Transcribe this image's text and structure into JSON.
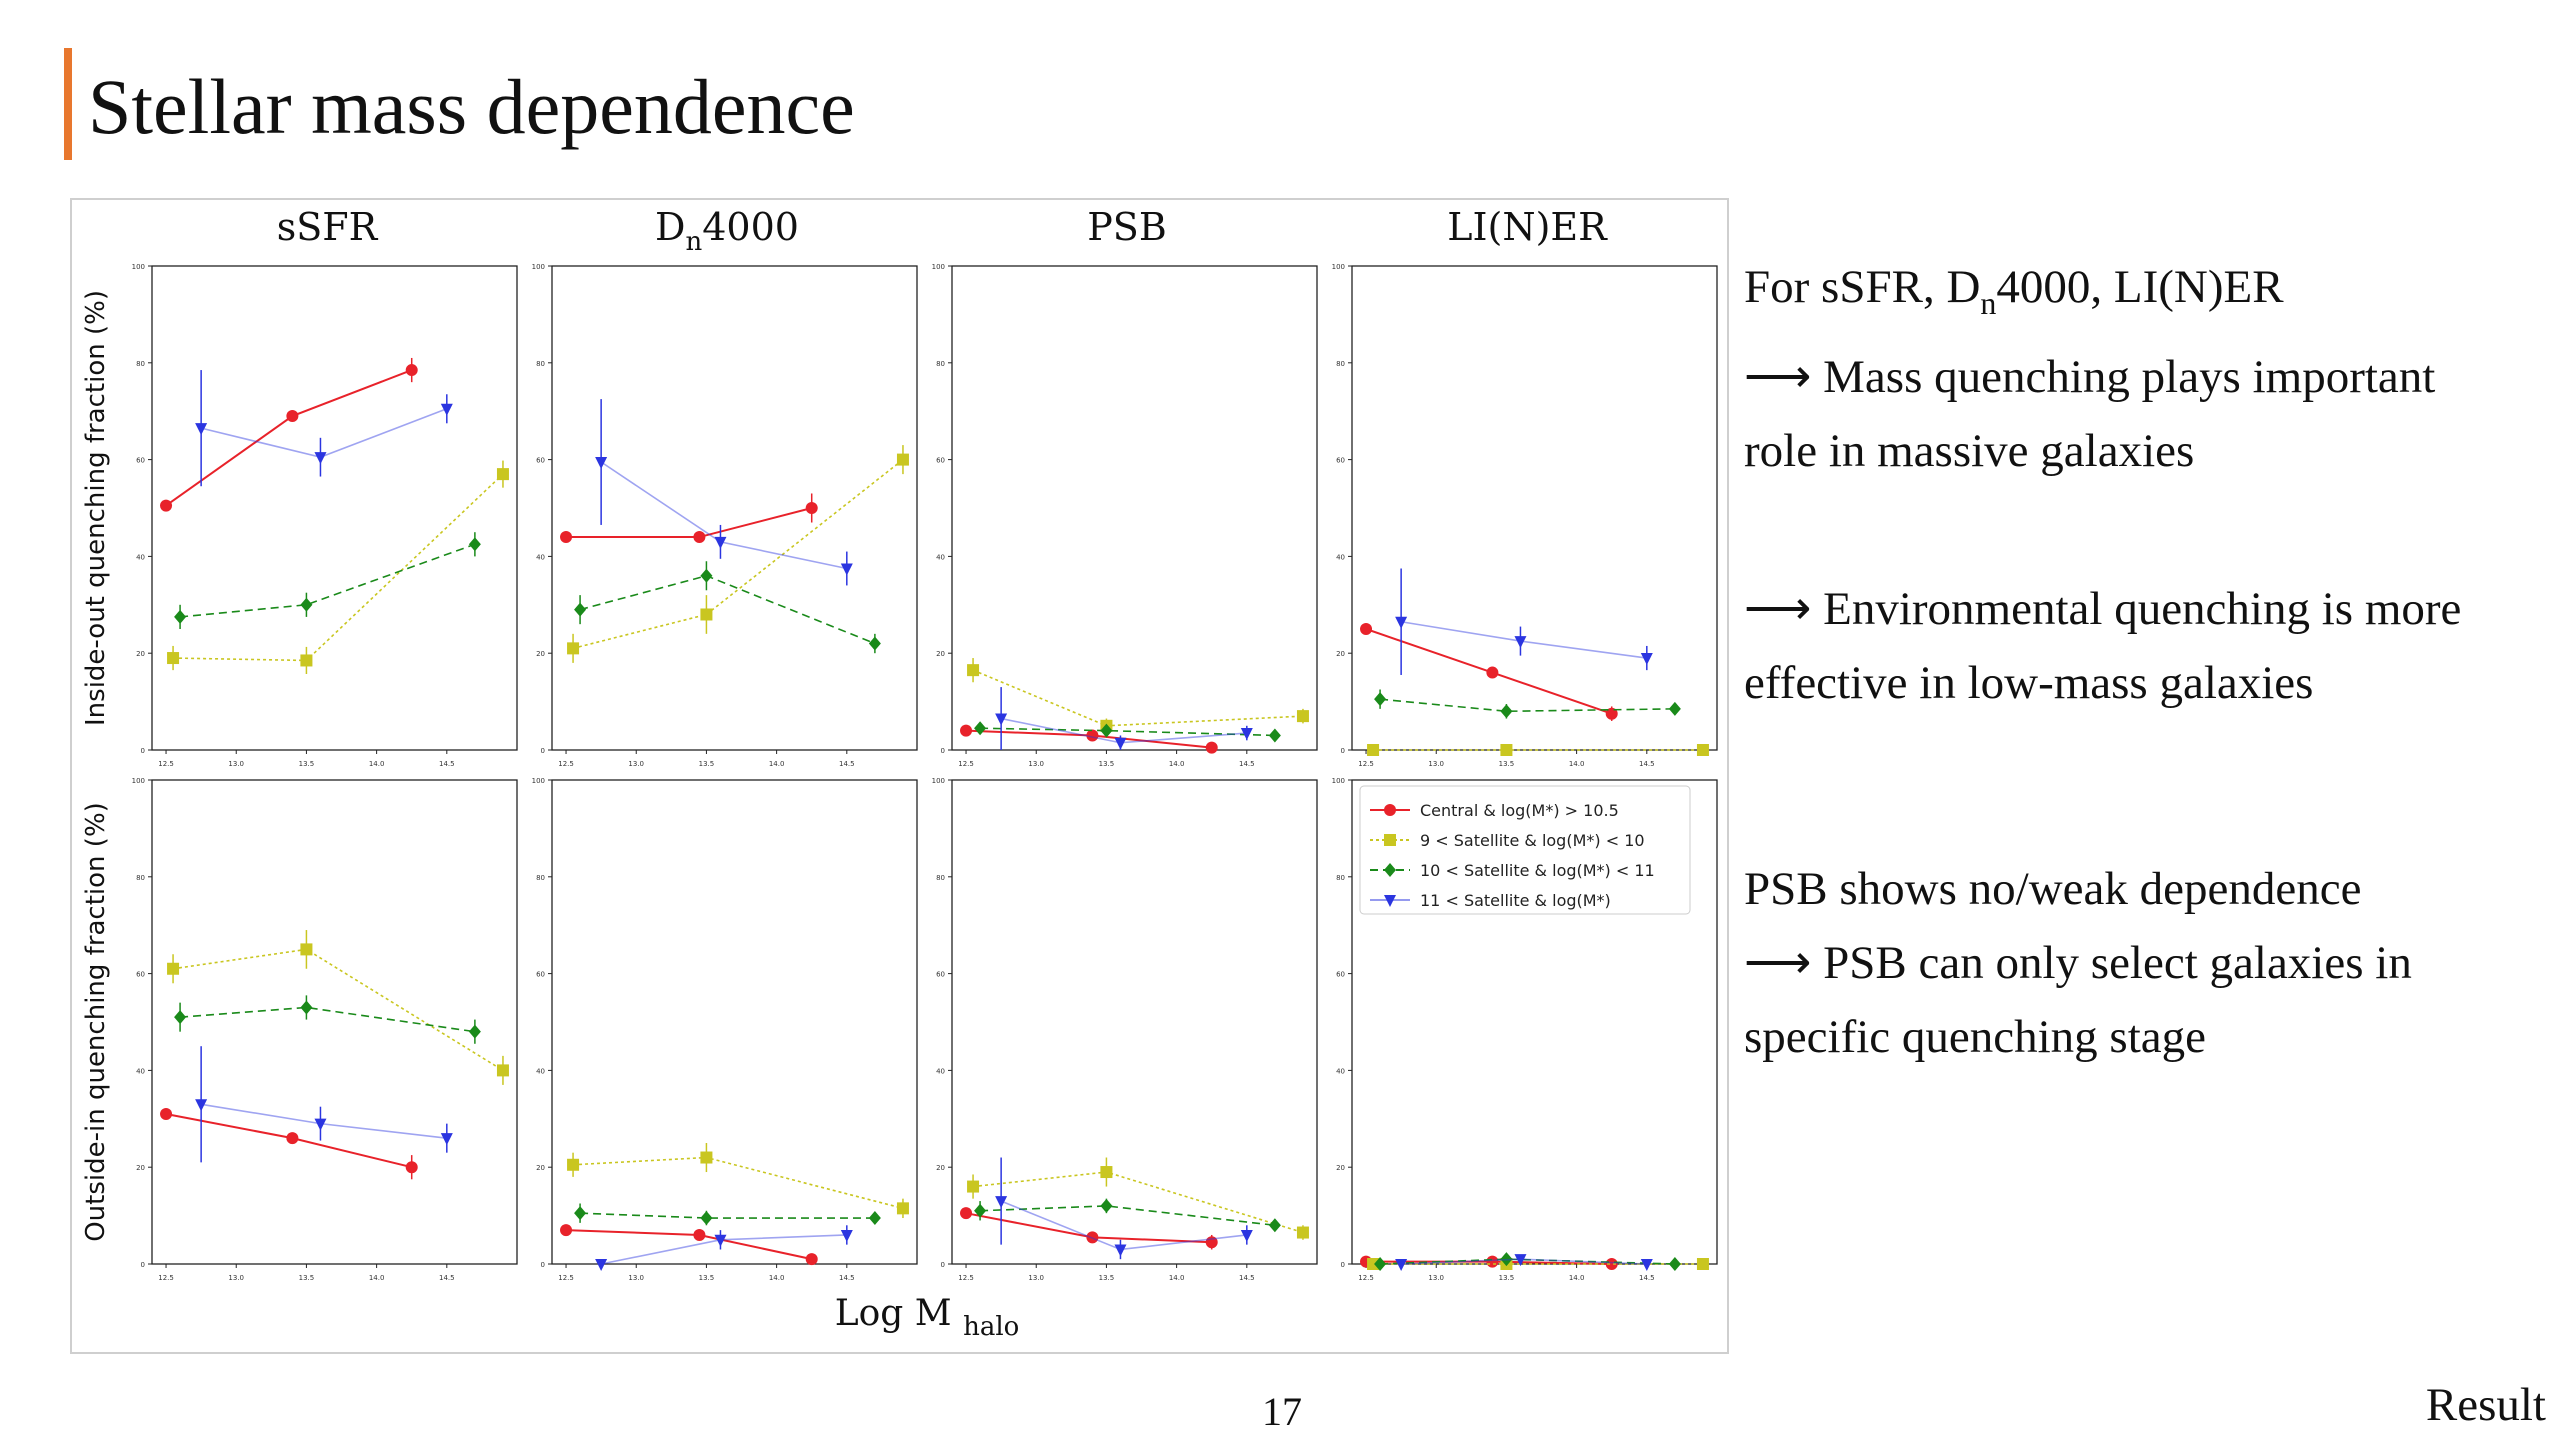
{
  "slide": {
    "title": "Stellar mass dependence",
    "page_number": "17",
    "section_label": "Result",
    "accent_color": "#e8772e"
  },
  "bullets": {
    "b1_prefix": "For sSFR, D",
    "b1_sub": "n",
    "b1_suffix": "4000, LI(N)ER",
    "b2": "⟶ Mass quenching plays important",
    "b3": "role in massive galaxies",
    "b4": "⟶ Environmental quenching is more",
    "b5": "effective in low-mass galaxies",
    "b6": "PSB shows no/weak dependence",
    "b7": "⟶ PSB can only select galaxies in",
    "b8": "specific quenching stage"
  },
  "chart_data": {
    "type": "line",
    "xlabel_main": "Log M",
    "xlabel_sub": "halo",
    "column_titles": [
      {
        "main": "sSFR",
        "sub": ""
      },
      {
        "main": "D",
        "sub": "n",
        "tail": "4000"
      },
      {
        "main": "PSB",
        "sub": ""
      },
      {
        "main": "LI(N)ER",
        "sub": ""
      }
    ],
    "row_ylabels": [
      "Inside-out quenching fraction (%)",
      "Outside-in quenching fraction (%)"
    ],
    "xlim": [
      12.4,
      15.0
    ],
    "ylim": [
      0,
      100
    ],
    "xticks": [
      12.5,
      13.0,
      13.5,
      14.0,
      14.5
    ],
    "xtick_labels": [
      "12.5",
      "13.0",
      "13.5",
      "14.0",
      "14.5"
    ],
    "yticks": [
      0,
      20,
      40,
      60,
      80,
      100
    ],
    "ytick_labels": [
      "0",
      "20",
      "40",
      "60",
      "80",
      "100"
    ],
    "legend": [
      {
        "label": "Central & log(M*) > 10.5",
        "color": "#e8222a",
        "style": "solid",
        "marker": "circle"
      },
      {
        "label": "9 < Satellite & log(M*) < 10",
        "color": "#c9c620",
        "style": "dotted",
        "marker": "square"
      },
      {
        "label": "10 < Satellite & log(M*) < 11",
        "color": "#1a8a1a",
        "style": "dashed",
        "marker": "diamond"
      },
      {
        "label": "11 < Satellite & log(M*)",
        "color": "#2b35e0",
        "style": "solid-light",
        "marker": "triangle"
      }
    ],
    "panels": [
      {
        "row": 0,
        "col": 0,
        "series": [
          {
            "name": "central",
            "x": [
              12.5,
              13.4,
              14.25
            ],
            "y": [
              50.5,
              69,
              78.5
            ],
            "err": [
              0.8,
              1,
              2.5
            ]
          },
          {
            "name": "sat9-10",
            "x": [
              12.55,
              13.5,
              14.9
            ],
            "y": [
              19,
              18.5,
              57
            ],
            "err": [
              2.5,
              2.8,
              2.8
            ]
          },
          {
            "name": "sat10-11",
            "x": [
              12.6,
              13.5,
              14.7
            ],
            "y": [
              27.5,
              30,
              42.5
            ],
            "err": [
              2.5,
              2.5,
              2.5
            ]
          },
          {
            "name": "sat11",
            "x": [
              12.75,
              13.6,
              14.5
            ],
            "y": [
              66.5,
              60.5,
              70.5
            ],
            "err": [
              12,
              4,
              3
            ]
          }
        ]
      },
      {
        "row": 0,
        "col": 1,
        "series": [
          {
            "name": "central",
            "x": [
              12.5,
              13.45,
              14.25
            ],
            "y": [
              44,
              44,
              50
            ],
            "err": [
              0.8,
              1,
              3
            ]
          },
          {
            "name": "sat9-10",
            "x": [
              12.55,
              13.5,
              14.9
            ],
            "y": [
              21,
              28,
              60
            ],
            "err": [
              3,
              4,
              3
            ]
          },
          {
            "name": "sat10-11",
            "x": [
              12.6,
              13.5,
              14.7
            ],
            "y": [
              29,
              36,
              22
            ],
            "err": [
              3,
              3,
              2
            ]
          },
          {
            "name": "sat11",
            "x": [
              12.75,
              13.6,
              14.5
            ],
            "y": [
              59.5,
              43,
              37.5
            ],
            "err": [
              13,
              3.5,
              3.5
            ]
          }
        ]
      },
      {
        "row": 0,
        "col": 2,
        "series": [
          {
            "name": "central",
            "x": [
              12.5,
              13.4,
              14.25
            ],
            "y": [
              4,
              3,
              0.5
            ],
            "err": [
              0.5,
              0.5,
              0.5
            ]
          },
          {
            "name": "sat9-10",
            "x": [
              12.55,
              13.5,
              14.9
            ],
            "y": [
              16.5,
              5,
              7
            ],
            "err": [
              2.5,
              1.5,
              1.5
            ]
          },
          {
            "name": "sat10-11",
            "x": [
              12.6,
              13.5,
              14.7
            ],
            "y": [
              4.5,
              4,
              3
            ],
            "err": [
              1,
              1,
              1
            ]
          },
          {
            "name": "sat11",
            "x": [
              12.75,
              13.6,
              14.5
            ],
            "y": [
              6.5,
              1.5,
              3.5
            ],
            "err": [
              6.5,
              1.5,
              1.5
            ]
          }
        ]
      },
      {
        "row": 0,
        "col": 3,
        "series": [
          {
            "name": "central",
            "x": [
              12.5,
              13.4,
              14.25
            ],
            "y": [
              25,
              16,
              7.5
            ],
            "err": [
              0.8,
              1,
              1.5
            ]
          },
          {
            "name": "sat9-10",
            "x": [
              12.55,
              13.5,
              14.9
            ],
            "y": [
              0,
              0,
              0
            ],
            "err": [
              0.2,
              0.2,
              0.2
            ]
          },
          {
            "name": "sat10-11",
            "x": [
              12.6,
              13.5,
              14.7
            ],
            "y": [
              10.5,
              8,
              8.5
            ],
            "err": [
              2,
              1.5,
              1
            ]
          },
          {
            "name": "sat11",
            "x": [
              12.75,
              13.6,
              14.5
            ],
            "y": [
              26.5,
              22.5,
              19
            ],
            "err": [
              11,
              3,
              2.5
            ]
          }
        ]
      },
      {
        "row": 1,
        "col": 0,
        "series": [
          {
            "name": "central",
            "x": [
              12.5,
              13.4,
              14.25
            ],
            "y": [
              31,
              26,
              20
            ],
            "err": [
              0.8,
              1,
              2.5
            ]
          },
          {
            "name": "sat9-10",
            "x": [
              12.55,
              13.5,
              14.9
            ],
            "y": [
              61,
              65,
              40
            ],
            "err": [
              3,
              4,
              3
            ]
          },
          {
            "name": "sat10-11",
            "x": [
              12.6,
              13.5,
              14.7
            ],
            "y": [
              51,
              53,
              48
            ],
            "err": [
              3,
              2.5,
              2.5
            ]
          },
          {
            "name": "sat11",
            "x": [
              12.75,
              13.6,
              14.5
            ],
            "y": [
              33,
              29,
              26
            ],
            "err": [
              12,
              3.5,
              3
            ]
          }
        ]
      },
      {
        "row": 1,
        "col": 1,
        "series": [
          {
            "name": "central",
            "x": [
              12.5,
              13.45,
              14.25
            ],
            "y": [
              7,
              6,
              1
            ],
            "err": [
              0.8,
              1,
              0.5
            ]
          },
          {
            "name": "sat9-10",
            "x": [
              12.55,
              13.5,
              14.9
            ],
            "y": [
              20.5,
              22,
              11.5
            ],
            "err": [
              2.5,
              3,
              2
            ]
          },
          {
            "name": "sat10-11",
            "x": [
              12.6,
              13.5,
              14.7
            ],
            "y": [
              10.5,
              9.5,
              9.5
            ],
            "err": [
              2,
              1.5,
              1
            ]
          },
          {
            "name": "sat11",
            "x": [
              12.75,
              13.6,
              14.5
            ],
            "y": [
              0,
              5,
              6
            ],
            "err": [
              0.5,
              2,
              2
            ]
          }
        ]
      },
      {
        "row": 1,
        "col": 2,
        "series": [
          {
            "name": "central",
            "x": [
              12.5,
              13.4,
              14.25
            ],
            "y": [
              10.5,
              5.5,
              4.5
            ],
            "err": [
              0.8,
              1,
              1.5
            ]
          },
          {
            "name": "sat9-10",
            "x": [
              12.55,
              13.5,
              14.9
            ],
            "y": [
              16,
              19,
              6.5
            ],
            "err": [
              2.5,
              3,
              1.5
            ]
          },
          {
            "name": "sat10-11",
            "x": [
              12.6,
              13.5,
              14.7
            ],
            "y": [
              11,
              12,
              8
            ],
            "err": [
              2,
              1.5,
              1
            ]
          },
          {
            "name": "sat11",
            "x": [
              12.75,
              13.6,
              14.5
            ],
            "y": [
              13,
              3,
              6
            ],
            "err": [
              9,
              2,
              2
            ]
          }
        ]
      },
      {
        "row": 1,
        "col": 3,
        "series": [
          {
            "name": "central",
            "x": [
              12.5,
              13.4,
              14.25
            ],
            "y": [
              0.5,
              0.5,
              0
            ],
            "err": [
              0.3,
              0.3,
              0.2
            ]
          },
          {
            "name": "sat9-10",
            "x": [
              12.55,
              13.5,
              14.9
            ],
            "y": [
              0,
              0,
              0
            ],
            "err": [
              0.2,
              0.2,
              0.2
            ]
          },
          {
            "name": "sat10-11",
            "x": [
              12.6,
              13.5,
              14.7
            ],
            "y": [
              0,
              1,
              0
            ],
            "err": [
              0.3,
              0.5,
              0.2
            ]
          },
          {
            "name": "sat11",
            "x": [
              12.75,
              13.6,
              14.5
            ],
            "y": [
              0,
              1,
              0
            ],
            "err": [
              0.3,
              0.8,
              0.3
            ]
          }
        ]
      }
    ]
  }
}
